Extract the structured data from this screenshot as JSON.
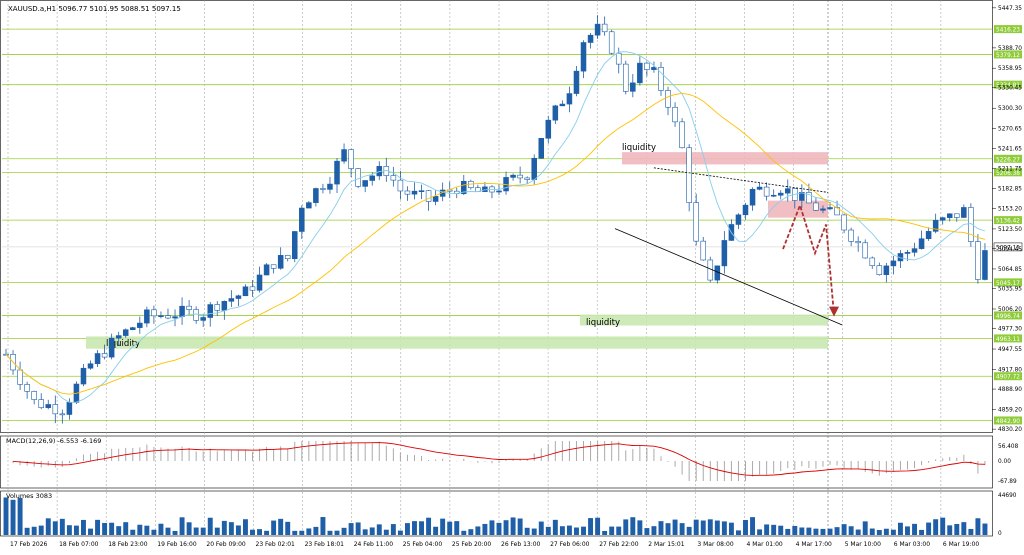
{
  "header": {
    "symbol_text": "XAUUSD.a,H1  5096.77 5101.95 5088.51 5097.15",
    "macd_label": "MACD(12,26,9) -6.553 -6.169",
    "volumes_label": "Volumes 3083"
  },
  "chart_data": {
    "type": "candlestick",
    "symbol": "XAUUSD.a",
    "timeframe": "H1",
    "last_ohlc": {
      "open": 5096.77,
      "high": 5101.95,
      "low": 5088.51,
      "close": 5097.15
    },
    "current_price": 5097.15,
    "price_ticks": [
      5447.35,
      5388.7,
      5358.95,
      5330.45,
      5300.3,
      5270.65,
      5241.65,
      5211.75,
      5182.85,
      5153.2,
      5123.5,
      5094.45,
      5064.85,
      5035.95,
      5006.2,
      4977.3,
      4947.55,
      4917.8,
      4888.9,
      4859.2,
      4830.2
    ],
    "levels": [
      5416.23,
      5379.12,
      5334.81,
      5226.27,
      5206.38,
      5136.42,
      5045.17,
      4996.74,
      4963.11,
      4907.72,
      4842.9
    ],
    "time_labels": [
      "17 Feb 2026",
      "18 Feb 07:00",
      "18 Feb 23:00",
      "19 Feb 16:00",
      "20 Feb 09:00",
      "23 Feb 02:01",
      "23 Feb 18:01",
      "24 Feb 11:00",
      "25 Feb 04:00",
      "25 Feb 20:00",
      "26 Feb 13:00",
      "27 Feb 06:00",
      "27 Feb 22:00",
      "2 Mar 15:01",
      "3 Mar 08:00",
      "4 Mar 01:00",
      "4 Mar 17:00",
      "5 Mar 10:00",
      "6 Mar 03:00",
      "6 Mar 19:00"
    ],
    "price_path": [
      [
        0,
        4940
      ],
      [
        2,
        4870
      ],
      [
        4,
        4860
      ],
      [
        6,
        4925
      ],
      [
        8,
        4965
      ],
      [
        10,
        4995
      ],
      [
        12,
        5000
      ],
      [
        14,
        5000
      ],
      [
        15,
        5015
      ],
      [
        17,
        5030
      ],
      [
        19,
        5075
      ],
      [
        20,
        5080
      ],
      [
        21,
        5160
      ],
      [
        23,
        5200
      ],
      [
        24,
        5235
      ],
      [
        25,
        5195
      ],
      [
        27,
        5210
      ],
      [
        28,
        5180
      ],
      [
        30,
        5165
      ],
      [
        32,
        5185
      ],
      [
        34,
        5175
      ],
      [
        37,
        5205
      ],
      [
        38,
        5260
      ],
      [
        40,
        5330
      ],
      [
        41,
        5400
      ],
      [
        42,
        5415
      ],
      [
        43,
        5390
      ],
      [
        44,
        5330
      ],
      [
        45,
        5360
      ],
      [
        46,
        5350
      ],
      [
        47,
        5310
      ],
      [
        48,
        5240
      ],
      [
        49,
        5100
      ],
      [
        50,
        5040
      ],
      [
        51,
        5110
      ],
      [
        53,
        5180
      ],
      [
        55,
        5185
      ],
      [
        57,
        5160
      ],
      [
        59,
        5140
      ],
      [
        62,
        5065
      ],
      [
        64,
        5090
      ],
      [
        66,
        5130
      ],
      [
        68,
        5150
      ],
      [
        69,
        5060
      ],
      [
        70,
        5115
      ],
      [
        71,
        5120
      ]
    ],
    "annotations": {
      "liquidity_top": "liquidity",
      "liquidity_mid": "liquidity",
      "liquidity_left": "liquidity"
    },
    "macd": {
      "ticks": [
        "56.408",
        "0.00",
        "-67.89"
      ],
      "value": -6.553,
      "signal": -6.169
    },
    "volumes": {
      "ticks": [
        "44690",
        "0"
      ],
      "value": 3083
    },
    "colors": {
      "bull": "#1f5fa8",
      "bear": "#1f5fa8",
      "level": "#9acd32",
      "ma_fast": "#87ceeb",
      "ma_slow": "#ffc000",
      "liq_red": "#f0b8bc",
      "liq_green": "#c8e8b0",
      "arrow": "#b03030",
      "price_tag": "#8fcc3a"
    }
  }
}
